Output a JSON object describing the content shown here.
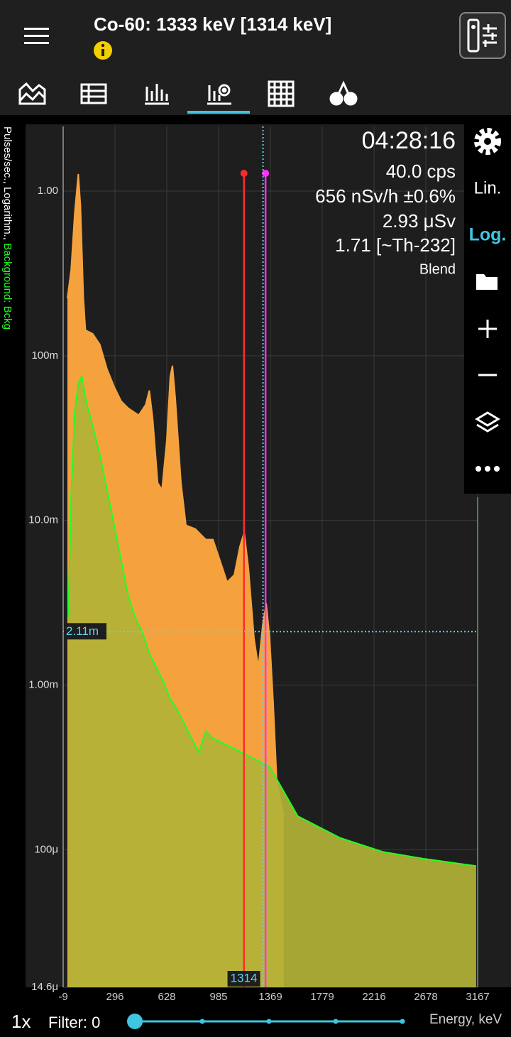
{
  "header": {
    "title": "Co-60: 1333 keV [1314 keV]"
  },
  "stats": {
    "time": "04:28:16",
    "rate": "40.0 cps",
    "dose_rate": "656 nSv/h ±0.6%",
    "dose": "2.93 μSv",
    "ratio": "1.71 [~Th-232]",
    "mode": "Blend"
  },
  "toolbar": {
    "lin": "Lin.",
    "log": "Log."
  },
  "footer": {
    "zoom": "1x",
    "filter": "Filter: 0",
    "x_axis_label": "Energy, keV"
  },
  "chart_data": {
    "type": "area",
    "log_y": true,
    "grid": true,
    "y_axis_label": "Pulses/sec., Logarithm., ",
    "y_axis_label_background": "Background: Bckg",
    "xlim": [
      -9,
      3167
    ],
    "xticks": [
      -9,
      296,
      628,
      985,
      1369,
      1779,
      2216,
      2678,
      3167
    ],
    "ylim": [
      1.46e-05,
      2.47
    ],
    "yticks": [
      {
        "value": 1,
        "label": "1.00"
      },
      {
        "value": 0.1,
        "label": "100m"
      },
      {
        "value": 0.01,
        "label": "10.0m"
      },
      {
        "value": 0.001,
        "label": "1.00m"
      },
      {
        "value": 0.0001,
        "label": "100μ"
      },
      {
        "value": 1.46e-05,
        "label": "14.6μ"
      }
    ],
    "series": [
      {
        "color": "#f5a23e",
        "x": [
          16,
          38,
          59,
          80,
          93,
          110,
          122,
          165,
          207,
          249,
          292,
          336,
          381,
          448,
          493,
          516,
          538,
          570,
          597,
          628,
          652,
          667,
          686,
          726,
          760,
          824,
          897,
          946,
          996,
          1048,
          1101,
          1143,
          1175,
          1206,
          1248,
          1280,
          1312,
          1338,
          1364,
          1391,
          1419,
          1474
        ],
        "values": [
          0.223,
          0.332,
          0.735,
          1.27,
          0.812,
          0.223,
          0.143,
          0.136,
          0.117,
          0.0828,
          0.0646,
          0.053,
          0.048,
          0.0435,
          0.0504,
          0.0615,
          0.0413,
          0.0169,
          0.0153,
          0.0307,
          0.075,
          0.0871,
          0.0557,
          0.0169,
          0.00933,
          0.00888,
          0.00765,
          0.00765,
          0.00568,
          0.00422,
          0.00466,
          0.00693,
          0.00845,
          0.00514,
          0.00191,
          0.00128,
          0.00232,
          0.00313,
          0.00191,
          0.00078,
          0.000262,
          0.00016
        ]
      },
      {
        "color": "#22ff22",
        "fill": "#b2b236",
        "x": [
          21,
          38,
          59,
          80,
          101,
          122,
          165,
          207,
          249,
          292,
          336,
          381,
          426,
          471,
          516,
          561,
          606,
          652,
          701,
          750,
          799,
          848,
          897,
          946,
          1154,
          1364,
          1585,
          1929,
          2292,
          2672,
          3153
        ],
        "values": [
          0.00257,
          0.01387,
          0.0456,
          0.0679,
          0.075,
          0.0557,
          0.0374,
          0.0252,
          0.0153,
          0.00933,
          0.00568,
          0.00346,
          0.00257,
          0.0021,
          0.00156,
          0.00128,
          0.00105,
          0.00082,
          0.000707,
          0.000579,
          0.000475,
          0.00039,
          0.000525,
          0.000475,
          0.00039,
          0.000319,
          0.00016,
          0.000118,
          9.71e-05,
          8.79e-05,
          7.96e-05
        ]
      }
    ],
    "markers": [
      {
        "x": 1173,
        "color": "#ff2a2a"
      },
      {
        "x": 1333,
        "color": "#ff33ff"
      }
    ],
    "cursor": {
      "x": 1314,
      "y": {
        "value": 0.00211,
        "label": "2.11m"
      },
      "color": "#5fd3ee"
    }
  }
}
